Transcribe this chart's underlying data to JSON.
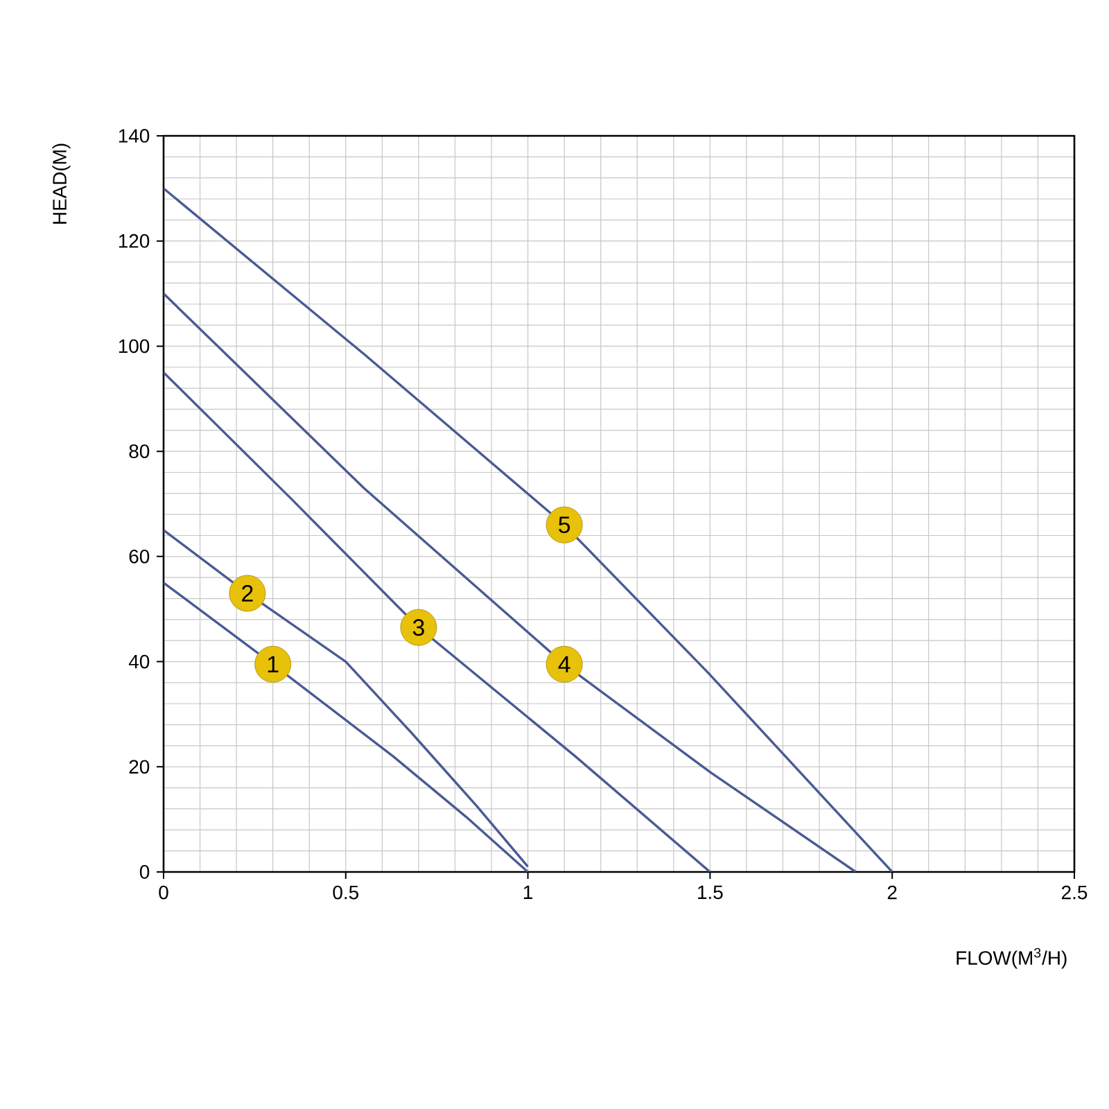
{
  "chart_data": {
    "type": "line",
    "xlabel": "FLOW(M$^{3}$/H)",
    "ylabel": "HEAD(M)",
    "xlim": [
      0,
      2.5
    ],
    "ylim": [
      0,
      140
    ],
    "xticks": [
      0,
      0.5,
      1,
      1.5,
      2,
      2.5
    ],
    "yticks": [
      0,
      20,
      40,
      60,
      80,
      100,
      120,
      140
    ],
    "grid": true,
    "series": [
      {
        "color": "#4a5a92",
        "x": [
          0,
          0.3,
          0.63,
          0.83,
          1.0
        ],
        "values": [
          55,
          39.5,
          22,
          10.5,
          0
        ]
      },
      {
        "color": "#4a5a92",
        "x": [
          0,
          0.23,
          0.5,
          0.68,
          0.86,
          1.0
        ],
        "values": [
          65,
          53,
          40,
          26.5,
          12.5,
          1
        ]
      },
      {
        "color": "#4a5a92",
        "x": [
          0,
          0.35,
          0.7,
          1.13,
          1.5
        ],
        "values": [
          95,
          71,
          46.5,
          22,
          0
        ]
      },
      {
        "color": "#4a5a92",
        "x": [
          0,
          0.55,
          1.1,
          1.5,
          1.9
        ],
        "values": [
          110,
          73,
          39.5,
          19,
          0
        ]
      },
      {
        "color": "#4a5a92",
        "x": [
          0,
          0.55,
          1.1,
          1.5,
          2.0
        ],
        "values": [
          130,
          98.5,
          66,
          37.5,
          0
        ]
      }
    ],
    "annotations": [
      {
        "text": "1",
        "x": 0.3,
        "y": 39.5
      },
      {
        "text": "2",
        "x": 0.23,
        "y": 53
      },
      {
        "text": "3",
        "x": 0.7,
        "y": 46.5
      },
      {
        "text": "4",
        "x": 1.1,
        "y": 39.5
      },
      {
        "text": "5",
        "x": 1.1,
        "y": 66
      }
    ]
  }
}
